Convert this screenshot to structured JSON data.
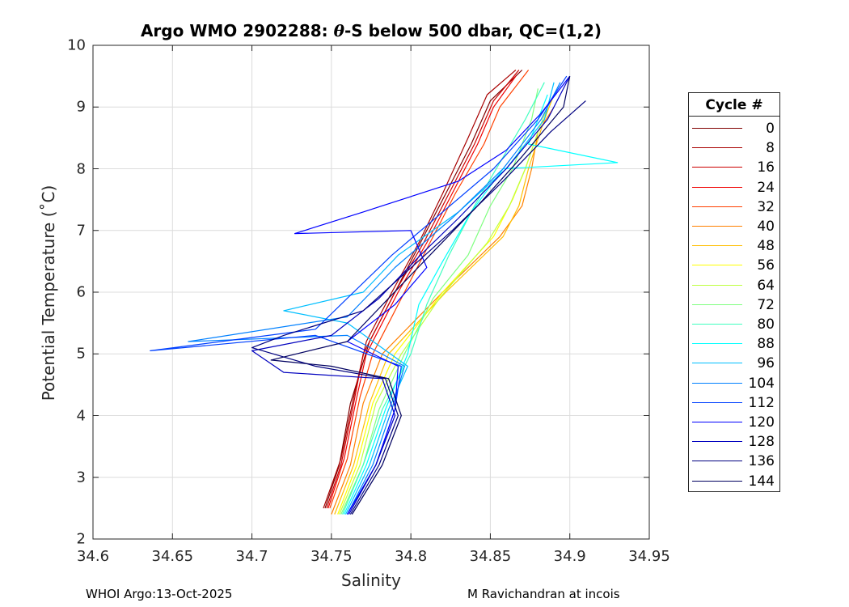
{
  "chart_data": {
    "type": "line",
    "title_prefix": "Argo WMO 2902288: ",
    "title_theta": "θ",
    "title_suffix": "-S below 500 dbar,  QC=(1,2)",
    "xlabel": "Salinity",
    "ylabel": "Potential Temperature (˚C)",
    "xlim": [
      34.6,
      34.95
    ],
    "ylim": [
      2,
      10
    ],
    "xticks": [
      "34.6",
      "34.65",
      "34.7",
      "34.75",
      "34.8",
      "34.85",
      "34.9",
      "34.95"
    ],
    "yticks": [
      "2",
      "3",
      "4",
      "5",
      "6",
      "7",
      "8",
      "9",
      "10"
    ],
    "grid": true,
    "legend_title": "Cycle #",
    "legend_location": "outside-right",
    "series": [
      {
        "name": "0",
        "color": "#800000",
        "values": [
          [
            34.746,
            2.5
          ],
          [
            34.755,
            3.2
          ],
          [
            34.762,
            4.2
          ],
          [
            34.774,
            5.2
          ],
          [
            34.79,
            6.0
          ],
          [
            34.806,
            6.8
          ],
          [
            34.822,
            7.6
          ],
          [
            34.838,
            8.4
          ],
          [
            34.85,
            9.1
          ],
          [
            34.87,
            9.6
          ]
        ]
      },
      {
        "name": "8",
        "color": "#a80000",
        "values": [
          [
            34.745,
            2.5
          ],
          [
            34.756,
            3.3
          ],
          [
            34.764,
            4.3
          ],
          [
            34.772,
            5.2
          ],
          [
            34.788,
            6.0
          ],
          [
            34.805,
            6.8
          ],
          [
            34.82,
            7.6
          ],
          [
            34.836,
            8.5
          ],
          [
            34.848,
            9.2
          ],
          [
            34.866,
            9.6
          ]
        ]
      },
      {
        "name": "16",
        "color": "#cc0000",
        "values": [
          [
            34.747,
            2.5
          ],
          [
            34.756,
            3.2
          ],
          [
            34.764,
            4.2
          ],
          [
            34.77,
            5.0
          ],
          [
            34.79,
            6.0
          ],
          [
            34.808,
            6.8
          ],
          [
            34.824,
            7.6
          ],
          [
            34.84,
            8.4
          ],
          [
            34.852,
            9.1
          ],
          [
            34.868,
            9.6
          ]
        ]
      },
      {
        "name": "24",
        "color": "#f00000",
        "values": [
          [
            34.748,
            2.5
          ],
          [
            34.758,
            3.3
          ],
          [
            34.766,
            4.3
          ],
          [
            34.772,
            5.0
          ],
          [
            34.792,
            6.0
          ],
          [
            34.81,
            6.8
          ],
          [
            34.826,
            7.6
          ],
          [
            34.842,
            8.4
          ],
          [
            34.852,
            9.0
          ],
          [
            34.866,
            9.5
          ]
        ]
      },
      {
        "name": "32",
        "color": "#ff4000",
        "values": [
          [
            34.749,
            2.5
          ],
          [
            34.76,
            3.3
          ],
          [
            34.768,
            4.3
          ],
          [
            34.776,
            5.0
          ],
          [
            34.796,
            6.0
          ],
          [
            34.812,
            6.8
          ],
          [
            34.828,
            7.6
          ],
          [
            34.846,
            8.4
          ],
          [
            34.856,
            9.0
          ],
          [
            34.874,
            9.6
          ]
        ]
      },
      {
        "name": "40",
        "color": "#ff8000",
        "values": [
          [
            34.75,
            2.4
          ],
          [
            34.762,
            3.2
          ],
          [
            34.77,
            4.2
          ],
          [
            34.782,
            5.0
          ],
          [
            34.82,
            6.0
          ],
          [
            34.856,
            6.9
          ],
          [
            34.87,
            7.4
          ],
          [
            34.876,
            8.0
          ],
          [
            34.88,
            8.6
          ],
          [
            34.89,
            9.0
          ]
        ]
      },
      {
        "name": "48",
        "color": "#ffbf00",
        "values": [
          [
            34.752,
            2.4
          ],
          [
            34.764,
            3.2
          ],
          [
            34.774,
            4.2
          ],
          [
            34.786,
            5.0
          ],
          [
            34.822,
            6.0
          ],
          [
            34.858,
            6.9
          ],
          [
            34.868,
            7.4
          ],
          [
            34.874,
            8.0
          ],
          [
            34.884,
            8.8
          ],
          [
            34.89,
            9.2
          ]
        ]
      },
      {
        "name": "56",
        "color": "#ffff00",
        "values": [
          [
            34.754,
            2.4
          ],
          [
            34.766,
            3.2
          ],
          [
            34.776,
            4.2
          ],
          [
            34.79,
            5.0
          ],
          [
            34.82,
            6.0
          ],
          [
            34.852,
            6.9
          ],
          [
            34.864,
            7.5
          ],
          [
            34.872,
            8.0
          ],
          [
            34.88,
            8.6
          ]
        ]
      },
      {
        "name": "64",
        "color": "#bfff40",
        "values": [
          [
            34.755,
            2.4
          ],
          [
            34.768,
            3.2
          ],
          [
            34.778,
            4.2
          ],
          [
            34.794,
            5.0
          ],
          [
            34.818,
            5.9
          ],
          [
            34.848,
            6.8
          ],
          [
            34.862,
            7.4
          ],
          [
            34.872,
            8.0
          ],
          [
            34.88,
            8.6
          ],
          [
            34.886,
            9.0
          ]
        ]
      },
      {
        "name": "72",
        "color": "#80ff80",
        "values": [
          [
            34.756,
            2.4
          ],
          [
            34.77,
            3.2
          ],
          [
            34.78,
            4.1
          ],
          [
            34.796,
            5.0
          ],
          [
            34.814,
            5.9
          ],
          [
            34.836,
            6.6
          ],
          [
            34.85,
            7.4
          ],
          [
            34.864,
            8.0
          ],
          [
            34.876,
            8.8
          ],
          [
            34.88,
            9.3
          ]
        ]
      },
      {
        "name": "80",
        "color": "#40ffbf",
        "values": [
          [
            34.757,
            2.4
          ],
          [
            34.77,
            3.2
          ],
          [
            34.782,
            4.1
          ],
          [
            34.8,
            5.0
          ],
          [
            34.81,
            5.8
          ],
          [
            34.824,
            6.6
          ],
          [
            34.84,
            7.4
          ],
          [
            34.856,
            8.1
          ],
          [
            34.872,
            8.8
          ],
          [
            34.884,
            9.4
          ]
        ]
      },
      {
        "name": "88",
        "color": "#00ffff",
        "values": [
          [
            34.758,
            2.4
          ],
          [
            34.772,
            3.2
          ],
          [
            34.784,
            4.1
          ],
          [
            34.798,
            5.0
          ],
          [
            34.805,
            5.8
          ],
          [
            34.82,
            6.5
          ],
          [
            34.838,
            7.3
          ],
          [
            34.858,
            8.0
          ],
          [
            34.93,
            8.1
          ],
          [
            34.874,
            8.4
          ],
          [
            34.886,
            9.2
          ]
        ]
      },
      {
        "name": "96",
        "color": "#00bfff",
        "values": [
          [
            34.759,
            2.4
          ],
          [
            34.774,
            3.2
          ],
          [
            34.786,
            4.1
          ],
          [
            34.798,
            4.8
          ],
          [
            34.76,
            5.5
          ],
          [
            34.72,
            5.7
          ],
          [
            34.77,
            6.0
          ],
          [
            34.792,
            6.6
          ],
          [
            34.83,
            7.3
          ],
          [
            34.86,
            8.0
          ],
          [
            34.884,
            8.8
          ],
          [
            34.89,
            9.4
          ]
        ]
      },
      {
        "name": "104",
        "color": "#0080ff",
        "values": [
          [
            34.76,
            2.4
          ],
          [
            34.776,
            3.2
          ],
          [
            34.788,
            4.1
          ],
          [
            34.796,
            4.8
          ],
          [
            34.76,
            5.3
          ],
          [
            34.66,
            5.2
          ],
          [
            34.76,
            5.6
          ],
          [
            34.79,
            6.4
          ],
          [
            34.826,
            7.2
          ],
          [
            34.858,
            8.0
          ],
          [
            34.882,
            8.8
          ],
          [
            34.894,
            9.4
          ]
        ]
      },
      {
        "name": "112",
        "color": "#0040ff",
        "values": [
          [
            34.76,
            2.4
          ],
          [
            34.778,
            3.2
          ],
          [
            34.79,
            4.1
          ],
          [
            34.794,
            4.8
          ],
          [
            34.74,
            5.3
          ],
          [
            34.636,
            5.05
          ],
          [
            34.74,
            5.4
          ],
          [
            34.76,
            5.9
          ],
          [
            34.788,
            6.6
          ],
          [
            34.82,
            7.3
          ],
          [
            34.852,
            8.0
          ],
          [
            34.88,
            8.8
          ],
          [
            34.898,
            9.5
          ]
        ]
      },
      {
        "name": "120",
        "color": "#0000ff",
        "values": [
          [
            34.76,
            2.4
          ],
          [
            34.778,
            3.2
          ],
          [
            34.79,
            4.1
          ],
          [
            34.792,
            4.8
          ],
          [
            34.76,
            5.2
          ],
          [
            34.79,
            5.8
          ],
          [
            34.81,
            6.4
          ],
          [
            34.8,
            7.0
          ],
          [
            34.727,
            6.95
          ],
          [
            34.77,
            7.3
          ],
          [
            34.83,
            7.8
          ],
          [
            34.86,
            8.3
          ],
          [
            34.882,
            8.9
          ],
          [
            34.9,
            9.5
          ]
        ]
      },
      {
        "name": "128",
        "color": "#0000bf",
        "values": [
          [
            34.761,
            2.4
          ],
          [
            34.778,
            3.2
          ],
          [
            34.79,
            4.0
          ],
          [
            34.782,
            4.6
          ],
          [
            34.72,
            4.7
          ],
          [
            34.7,
            5.05
          ],
          [
            34.75,
            5.3
          ],
          [
            34.78,
            5.9
          ],
          [
            34.806,
            6.6
          ],
          [
            34.83,
            7.2
          ],
          [
            34.86,
            8.0
          ],
          [
            34.886,
            8.8
          ],
          [
            34.9,
            9.5
          ]
        ]
      },
      {
        "name": "136",
        "color": "#000080",
        "values": [
          [
            34.762,
            2.4
          ],
          [
            34.78,
            3.2
          ],
          [
            34.792,
            4.0
          ],
          [
            34.784,
            4.6
          ],
          [
            34.74,
            4.8
          ],
          [
            34.7,
            5.1
          ],
          [
            34.72,
            5.3
          ],
          [
            34.77,
            5.7
          ],
          [
            34.796,
            6.3
          ],
          [
            34.826,
            7.0
          ],
          [
            34.858,
            7.8
          ],
          [
            34.888,
            8.6
          ],
          [
            34.91,
            9.1
          ]
        ]
      },
      {
        "name": "144",
        "color": "#000060",
        "values": [
          [
            34.763,
            2.4
          ],
          [
            34.782,
            3.2
          ],
          [
            34.794,
            4.0
          ],
          [
            34.786,
            4.6
          ],
          [
            34.75,
            4.8
          ],
          [
            34.712,
            4.9
          ],
          [
            34.76,
            5.2
          ],
          [
            34.786,
            5.9
          ],
          [
            34.812,
            6.6
          ],
          [
            34.842,
            7.4
          ],
          [
            34.87,
            8.2
          ],
          [
            34.896,
            9.0
          ],
          [
            34.9,
            9.5
          ]
        ]
      }
    ]
  },
  "footer": {
    "left": "WHOI Argo:13-Oct-2025",
    "right": "M Ravichandran at incois"
  }
}
